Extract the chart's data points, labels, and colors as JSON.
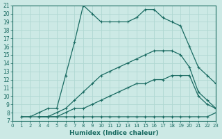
{
  "xlabel": "Humidex (Indice chaleur)",
  "xlim": [
    0,
    23
  ],
  "ylim": [
    7,
    21
  ],
  "xticks": [
    0,
    1,
    2,
    3,
    4,
    5,
    6,
    7,
    8,
    9,
    10,
    11,
    12,
    13,
    14,
    15,
    16,
    17,
    18,
    19,
    20,
    21,
    22,
    23
  ],
  "yticks": [
    7,
    8,
    9,
    10,
    11,
    12,
    13,
    14,
    15,
    16,
    17,
    18,
    19,
    20,
    21
  ],
  "bg_color": "#cce9e5",
  "line_color": "#1a6b62",
  "grid_color": "#b0d8d2",
  "lines": [
    {
      "x": [
        1,
        2,
        3,
        4,
        5,
        6,
        7,
        8,
        9,
        10,
        11,
        12,
        13,
        14,
        15,
        16,
        17,
        18,
        19,
        20,
        21,
        22,
        23
      ],
      "y": [
        7.5,
        7.5,
        7.5,
        7.5,
        7.5,
        7.5,
        7.5,
        7.5,
        7.5,
        7.5,
        7.5,
        7.5,
        7.5,
        7.5,
        7.5,
        7.5,
        7.5,
        7.5,
        7.5,
        7.5,
        7.5,
        7.5,
        8.0
      ]
    },
    {
      "x": [
        3,
        4,
        5,
        6,
        7,
        8,
        9,
        10,
        11,
        12,
        13,
        14,
        15,
        16,
        17,
        18,
        19,
        20,
        21,
        22,
        23
      ],
      "y": [
        7.5,
        7.5,
        7.5,
        8.0,
        8.5,
        8.5,
        9.0,
        9.5,
        10.0,
        10.5,
        11.0,
        11.5,
        11.5,
        12.0,
        12.0,
        12.5,
        12.5,
        12.5,
        10.0,
        9.0,
        8.5
      ]
    },
    {
      "x": [
        3,
        4,
        5,
        6,
        7,
        8,
        9,
        10,
        11,
        12,
        13,
        14,
        15,
        16,
        17,
        18,
        19,
        20,
        21,
        22,
        23
      ],
      "y": [
        7.5,
        7.5,
        8.0,
        8.5,
        9.5,
        10.5,
        11.5,
        12.5,
        13.0,
        13.5,
        14.0,
        14.5,
        15.0,
        15.5,
        15.5,
        15.5,
        15.0,
        13.5,
        10.5,
        9.5,
        8.5
      ]
    },
    {
      "x": [
        1,
        2,
        3,
        4,
        5,
        6,
        7,
        8,
        9,
        10,
        11,
        12,
        13,
        14,
        15,
        16,
        17,
        18,
        19,
        20,
        21,
        22,
        23
      ],
      "y": [
        7.5,
        7.5,
        8.0,
        8.5,
        8.5,
        12.5,
        16.5,
        21.0,
        20.0,
        19.0,
        19.0,
        19.0,
        19.0,
        19.5,
        20.5,
        20.5,
        19.5,
        19.0,
        18.5,
        16.0,
        13.5,
        12.5,
        11.5
      ]
    }
  ]
}
